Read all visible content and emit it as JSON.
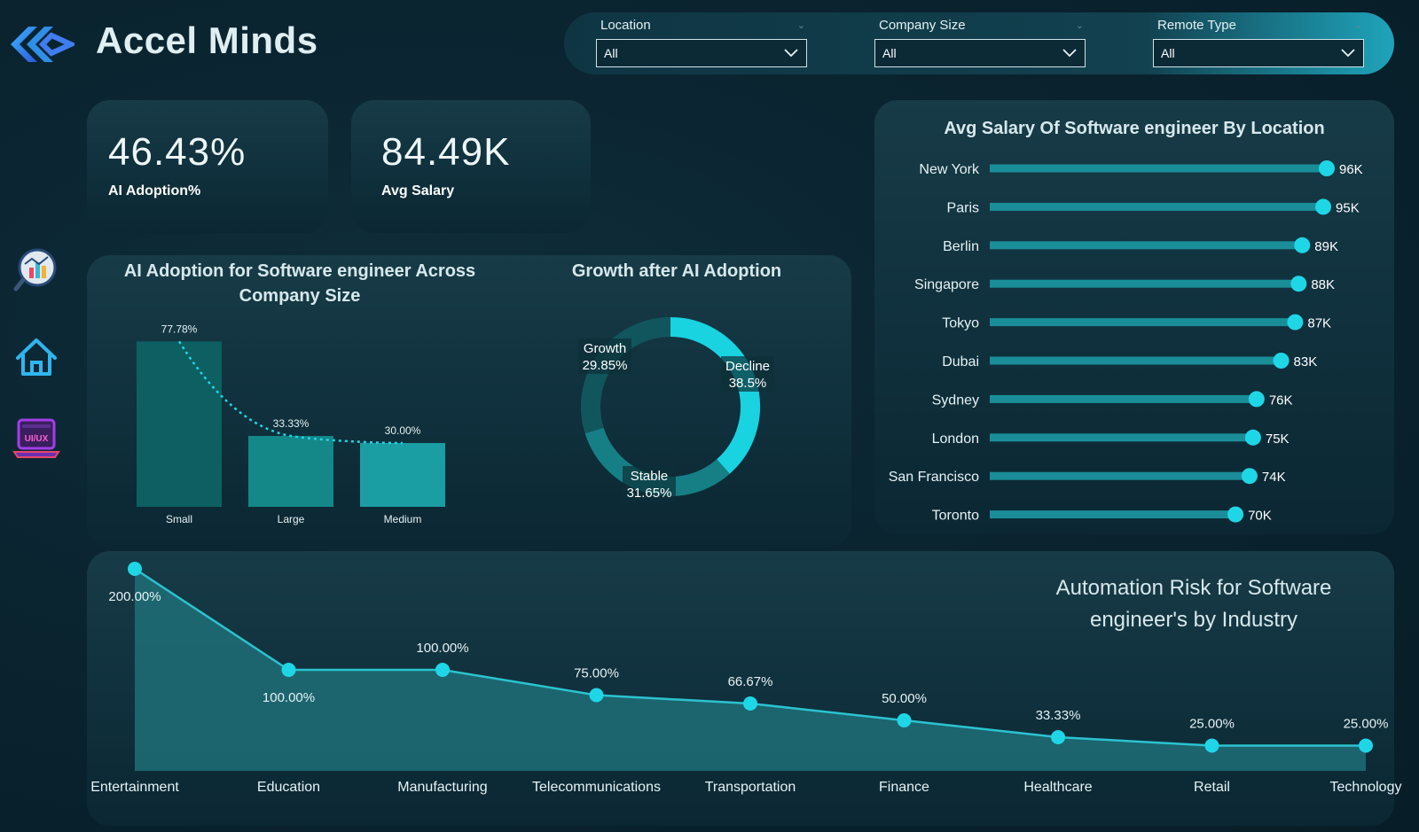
{
  "header": {
    "app_title": "Accel Minds",
    "logo_icon": "accel-minds-logo-icon"
  },
  "filters": [
    {
      "label": "Location",
      "value": "All"
    },
    {
      "label": "Company Size",
      "value": "All"
    },
    {
      "label": "Remote Type",
      "value": "All"
    }
  ],
  "sidebar": {
    "icons": [
      "analytics-search-icon",
      "home-icon",
      "ui-ux-laptop-icon"
    ]
  },
  "kpis": {
    "ai_adoption": {
      "value": "46.43%",
      "label": "AI Adoption%"
    },
    "avg_salary": {
      "value": "84.49K",
      "label": "Avg Salary"
    }
  },
  "colors": {
    "accent": "#1fd6e6",
    "bar_dark": "#0d5f62",
    "bar_mid": "#148789",
    "bar_light": "#1a9ea3",
    "area_fill": "#1e6f78"
  },
  "chart_data": [
    {
      "type": "bar",
      "title": "AI Adoption for Software engineer Across Company Size",
      "categories": [
        "Small",
        "Large",
        "Medium"
      ],
      "values": [
        77.78,
        33.33,
        30.0
      ],
      "labels": [
        "77.78%",
        "33.33%",
        "30.00%"
      ],
      "ylim": [
        0,
        80
      ],
      "trendline": "dotted"
    },
    {
      "type": "pie",
      "title": "Growth after AI Adoption",
      "donut": true,
      "slices": [
        {
          "name": "Decline",
          "value": 38.5,
          "label": "38.5%"
        },
        {
          "name": "Stable",
          "value": 31.65,
          "label": "31.65%"
        },
        {
          "name": "Growth",
          "value": 29.85,
          "label": "29.85%"
        }
      ]
    },
    {
      "type": "bar",
      "orientation": "horizontal",
      "title": "Avg Salary Of Software engineer By Location",
      "categories": [
        "New York",
        "Paris",
        "Berlin",
        "Singapore",
        "Tokyo",
        "Dubai",
        "Sydney",
        "London",
        "San Francisco",
        "Toronto"
      ],
      "values": [
        96,
        95,
        89,
        88,
        87,
        83,
        76,
        75,
        74,
        70
      ],
      "labels": [
        "96K",
        "95K",
        "89K",
        "88K",
        "87K",
        "83K",
        "76K",
        "75K",
        "74K",
        "70K"
      ],
      "xlim": [
        0,
        96
      ]
    },
    {
      "type": "area",
      "title": "Automation Risk for Software engineer's  by Industry",
      "categories": [
        "Entertainment",
        "Education",
        "Manufacturing",
        "Telecommunications",
        "Transportation",
        "Finance",
        "Healthcare",
        "Retail",
        "Technology"
      ],
      "values": [
        200.0,
        100.0,
        100.0,
        75.0,
        66.67,
        50.0,
        33.33,
        25.0,
        25.0
      ],
      "labels": [
        "200.00%",
        "100.00%",
        "100.00%",
        "75.00%",
        "66.67%",
        "50.00%",
        "33.33%",
        "25.00%",
        "25.00%"
      ],
      "ylim": [
        0,
        200
      ]
    }
  ]
}
